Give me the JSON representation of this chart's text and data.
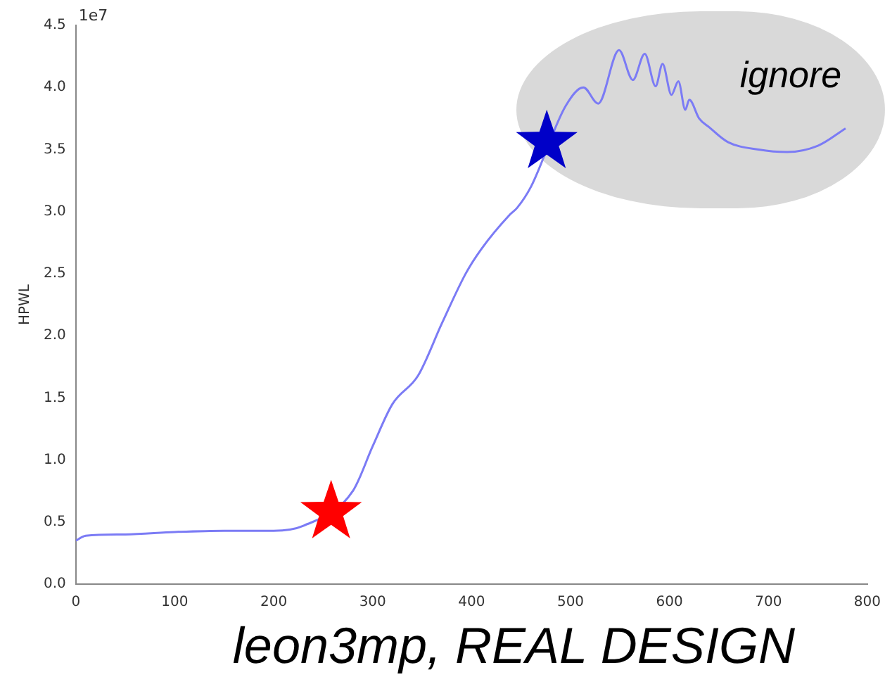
{
  "chart_data": {
    "type": "line",
    "ylabel": "HPWL",
    "xlim": [
      0,
      800
    ],
    "xticks": [
      0,
      100,
      200,
      300,
      400,
      500,
      600,
      700,
      800
    ],
    "ylim": [
      0,
      4.5
    ],
    "yticks": [
      {
        "value": 0,
        "label": "0.0"
      },
      0.5,
      {
        "value": 1,
        "label": "1.0"
      },
      1.5,
      {
        "value": 2,
        "label": "2.0"
      },
      2.5,
      {
        "value": 3,
        "label": "3.0"
      },
      3.5,
      {
        "value": 4,
        "label": "4.0"
      },
      4.5
    ],
    "grid": false,
    "legend": false,
    "series": [
      {
        "color": "#7b7bf5",
        "marker": "none",
        "x": [
          0,
          10,
          50,
          100,
          150,
          200,
          230,
          280,
          300,
          320,
          346,
          370,
          394,
          410,
          438,
          446,
          460,
          495,
          513,
          528,
          549,
          563,
          575,
          586,
          593,
          602,
          609,
          616,
          620,
          630,
          640,
          659,
          690,
          719,
          750,
          778
        ],
        "values": [
          0.35,
          0.39,
          0.4,
          0.42,
          0.43,
          0.43,
          0.47,
          0.75,
          1.11,
          1.45,
          1.68,
          2.1,
          2.5,
          2.7,
          2.97,
          3.03,
          3.2,
          3.85,
          4.0,
          3.87,
          4.3,
          4.06,
          4.27,
          4.01,
          4.19,
          3.94,
          4.05,
          3.82,
          3.9,
          3.75,
          3.68,
          3.56,
          3.5,
          3.48,
          3.53,
          3.67
        ]
      },
      {
        "type": "scatter",
        "color": "#ff0000",
        "marker": "star",
        "x": [
          258
        ],
        "values": [
          0.58
        ]
      },
      {
        "type": "scatter",
        "color": "#0000c8",
        "marker": "star",
        "x": [
          476
        ],
        "values": [
          3.56
        ]
      }
    ],
    "annotations": [
      "1e7",
      "ignore",
      "leon3mp, REAL DESIGN"
    ]
  }
}
